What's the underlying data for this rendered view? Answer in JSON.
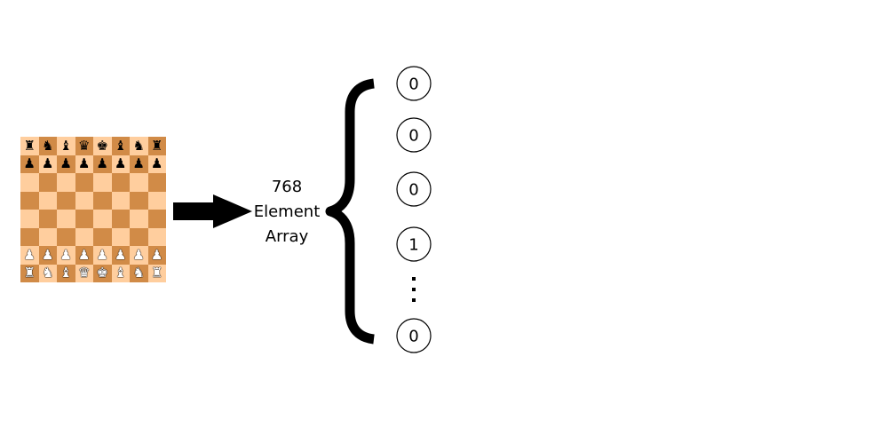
{
  "board": {
    "ranks": [
      [
        "r",
        "n",
        "b",
        "q",
        "k",
        "b",
        "n",
        "r"
      ],
      [
        "p",
        "p",
        "p",
        "p",
        "p",
        "p",
        "p",
        "p"
      ],
      [
        "",
        "",
        "",
        "",
        "",
        "",
        "",
        ""
      ],
      [
        "",
        "",
        "",
        "",
        "",
        "",
        "",
        ""
      ],
      [
        "",
        "",
        "",
        "",
        "",
        "",
        "",
        ""
      ],
      [
        "",
        "",
        "",
        "",
        "",
        "",
        "",
        ""
      ],
      [
        "P",
        "P",
        "P",
        "P",
        "P",
        "P",
        "P",
        "P"
      ],
      [
        "R",
        "N",
        "B",
        "Q",
        "K",
        "B",
        "N",
        "R"
      ]
    ],
    "colors": {
      "light": "#ffce9e",
      "dark": "#d18b47"
    }
  },
  "arrow": {
    "icon": "right-arrow-icon"
  },
  "label": {
    "line1": "768",
    "line2": "Element",
    "line3": "Array"
  },
  "brace": {
    "icon": "curly-brace-icon"
  },
  "elements": [
    "0",
    "0",
    "0",
    "1"
  ],
  "ellipsis": {
    "icon": "vertical-ellipsis-icon"
  },
  "last_element": "0"
}
